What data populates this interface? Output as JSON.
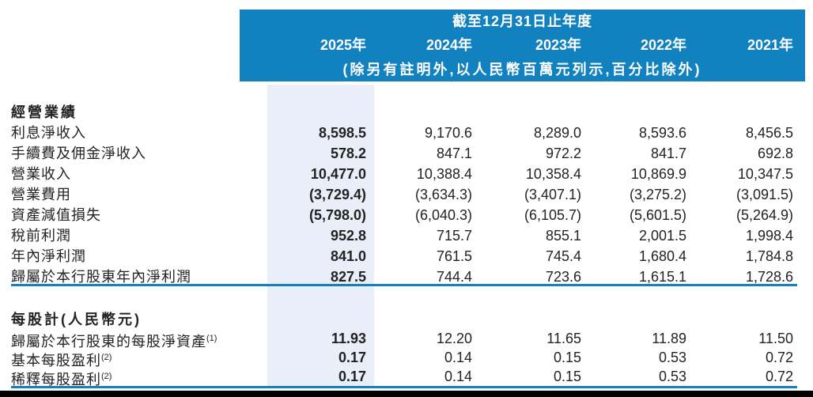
{
  "colors": {
    "header_blue": "#1181c0",
    "band_blue": "#e9eef8",
    "rule_blue": "#1181c0",
    "bottom_bar": "#000000",
    "text_color": "#232323"
  },
  "header": {
    "title": "截至12月31日止年度",
    "years": [
      "2025年",
      "2024年",
      "2023年",
      "2022年",
      "2021年"
    ],
    "note": "(除另有註明外,以人民幣百萬元列示,百分比除外)"
  },
  "table": {
    "sections": [
      {
        "heading": "經營業績",
        "rows": [
          {
            "label": "利息淨收入",
            "sup": "",
            "values": [
              "8,598.5",
              "9,170.6",
              "8,289.0",
              "8,593.6",
              "8,456.5"
            ]
          },
          {
            "label": "手續費及佣金淨收入",
            "sup": "",
            "values": [
              "578.2",
              "847.1",
              "972.2",
              "841.7",
              "692.8"
            ]
          },
          {
            "label": "營業收入",
            "sup": "",
            "values": [
              "10,477.0",
              "10,388.4",
              "10,358.4",
              "10,869.9",
              "10,347.5"
            ]
          },
          {
            "label": "營業費用",
            "sup": "",
            "values": [
              "(3,729.4)",
              "(3,634.3)",
              "(3,407.1)",
              "(3,275.2)",
              "(3,091.5)"
            ]
          },
          {
            "label": "資產減值損失",
            "sup": "",
            "values": [
              "(5,798.0)",
              "(6,040.3)",
              "(6,105.7)",
              "(5,601.5)",
              "(5,264.9)"
            ]
          },
          {
            "label": "稅前利潤",
            "sup": "",
            "values": [
              "952.8",
              "715.7",
              "855.1",
              "2,001.5",
              "1,998.4"
            ]
          },
          {
            "label": "年內淨利潤",
            "sup": "",
            "values": [
              "841.0",
              "761.5",
              "745.4",
              "1,680.4",
              "1,784.8"
            ]
          },
          {
            "label": "歸屬於本行股東年內淨利潤",
            "sup": "",
            "values": [
              "827.5",
              "744.4",
              "723.6",
              "1,615.1",
              "1,728.6"
            ]
          }
        ]
      },
      {
        "heading": "每股計(人民幣元)",
        "rows": [
          {
            "label": "歸屬於本行股東的每股淨資產",
            "sup": "(1)",
            "values": [
              "11.93",
              "12.20",
              "11.65",
              "11.89",
              "11.50"
            ]
          },
          {
            "label": "基本每股盈利",
            "sup": "(2)",
            "values": [
              "0.17",
              "0.14",
              "0.15",
              "0.53",
              "0.72"
            ]
          },
          {
            "label": "稀釋每股盈利",
            "sup": "(2)",
            "values": [
              "0.17",
              "0.14",
              "0.15",
              "0.53",
              "0.72"
            ]
          }
        ]
      }
    ]
  }
}
